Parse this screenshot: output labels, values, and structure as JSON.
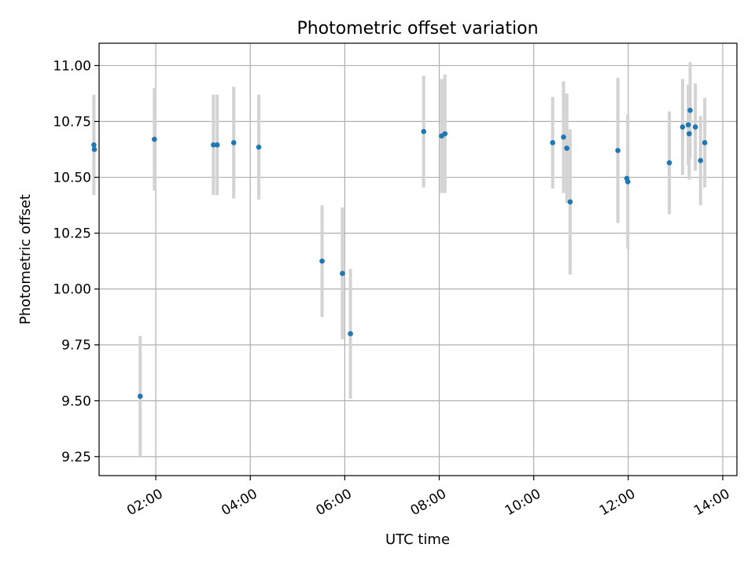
{
  "chart_data": {
    "type": "scatter",
    "title": "Photometric offset variation",
    "xlabel": "UTC time",
    "ylabel": "Photometric offset",
    "x_unit": "hours (UTC)",
    "xlim": [
      0.8,
      14.3
    ],
    "ylim": [
      9.165,
      11.1
    ],
    "x_ticks": [
      {
        "value": 2,
        "label": "02:00"
      },
      {
        "value": 4,
        "label": "04:00"
      },
      {
        "value": 6,
        "label": "06:00"
      },
      {
        "value": 8,
        "label": "08:00"
      },
      {
        "value": 10,
        "label": "10:00"
      },
      {
        "value": 12,
        "label": "12:00"
      },
      {
        "value": 14,
        "label": "14:00"
      }
    ],
    "y_ticks": [
      {
        "value": 9.25,
        "label": "9.25"
      },
      {
        "value": 9.5,
        "label": "9.50"
      },
      {
        "value": 9.75,
        "label": "9.75"
      },
      {
        "value": 10.0,
        "label": "10.00"
      },
      {
        "value": 10.25,
        "label": "10.25"
      },
      {
        "value": 10.5,
        "label": "10.50"
      },
      {
        "value": 10.75,
        "label": "10.75"
      },
      {
        "value": 11.0,
        "label": "11.00"
      }
    ],
    "grid": true,
    "marker_color": "#1f77b4",
    "errorbar_color": "#d3d3d3",
    "points": [
      {
        "x": 0.69,
        "y": 10.645,
        "err": 0.225
      },
      {
        "x": 0.7,
        "y": 10.625,
        "err": 0.0
      },
      {
        "x": 1.67,
        "y": 9.52,
        "err": 0.27
      },
      {
        "x": 1.97,
        "y": 10.67,
        "err": 0.23
      },
      {
        "x": 3.22,
        "y": 10.645,
        "err": 0.225
      },
      {
        "x": 3.3,
        "y": 10.645,
        "err": 0.225
      },
      {
        "x": 3.65,
        "y": 10.655,
        "err": 0.25
      },
      {
        "x": 4.18,
        "y": 10.635,
        "err": 0.235
      },
      {
        "x": 5.52,
        "y": 10.125,
        "err": 0.25
      },
      {
        "x": 5.95,
        "y": 10.07,
        "err": 0.295
      },
      {
        "x": 6.12,
        "y": 9.8,
        "err": 0.29
      },
      {
        "x": 7.67,
        "y": 10.705,
        "err": 0.25
      },
      {
        "x": 8.05,
        "y": 10.685,
        "err": 0.255
      },
      {
        "x": 8.12,
        "y": 10.695,
        "err": 0.265
      },
      {
        "x": 10.4,
        "y": 10.655,
        "err": 0.205
      },
      {
        "x": 10.63,
        "y": 10.68,
        "err": 0.25
      },
      {
        "x": 10.7,
        "y": 10.63,
        "err": 0.245
      },
      {
        "x": 10.77,
        "y": 10.39,
        "err": 0.325
      },
      {
        "x": 11.78,
        "y": 10.62,
        "err": 0.325
      },
      {
        "x": 11.97,
        "y": 10.495,
        "err": 0.0
      },
      {
        "x": 11.99,
        "y": 10.48,
        "err": 0.3
      },
      {
        "x": 12.87,
        "y": 10.565,
        "err": 0.23
      },
      {
        "x": 13.15,
        "y": 10.725,
        "err": 0.215
      },
      {
        "x": 13.27,
        "y": 10.735,
        "err": 0.18
      },
      {
        "x": 13.29,
        "y": 10.695,
        "err": 0.205
      },
      {
        "x": 13.31,
        "y": 10.8,
        "err": 0.215
      },
      {
        "x": 13.42,
        "y": 10.725,
        "err": 0.195
      },
      {
        "x": 13.53,
        "y": 10.575,
        "err": 0.2
      },
      {
        "x": 13.62,
        "y": 10.655,
        "err": 0.2
      }
    ]
  }
}
